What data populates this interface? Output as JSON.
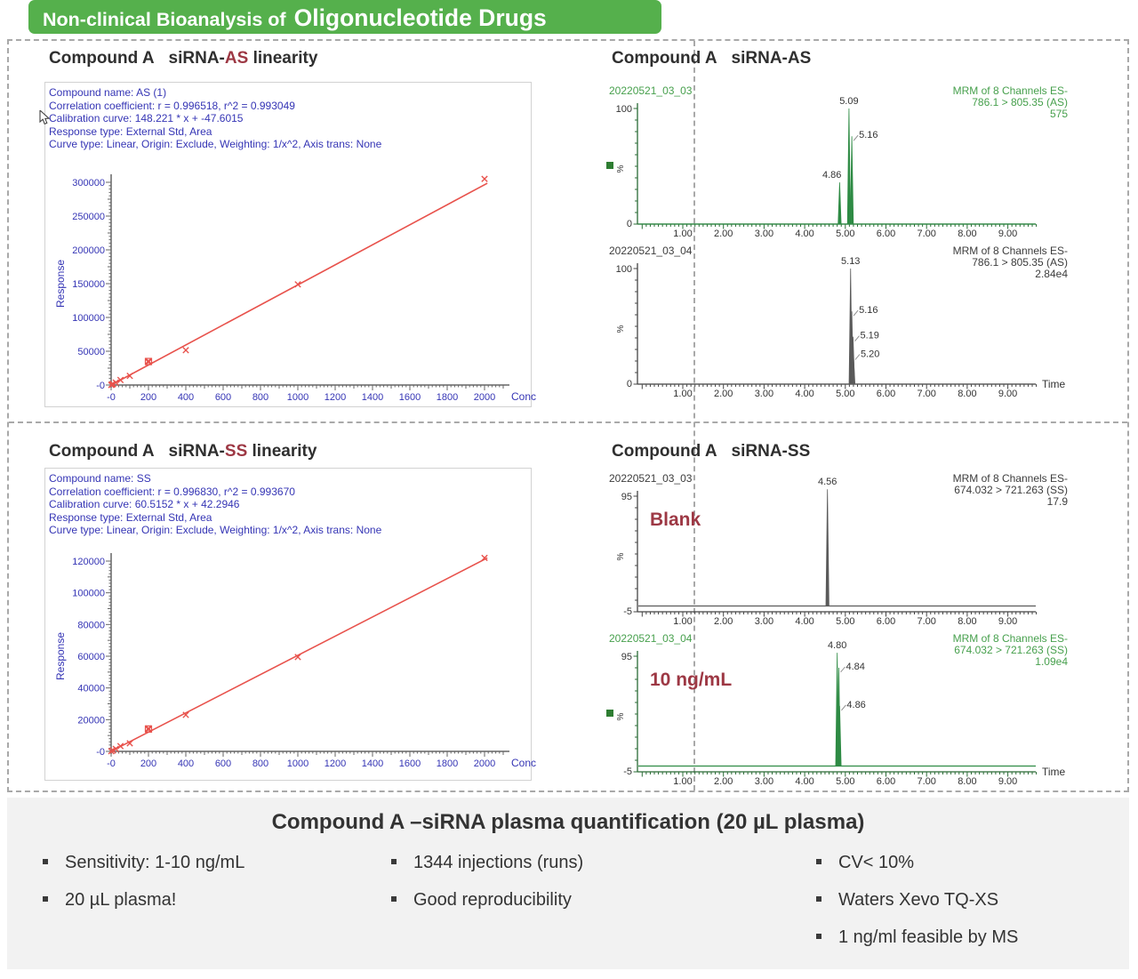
{
  "header": {
    "prefix": "Non-clinical Bioanalysis of",
    "emphasis": "Oligonucleotide Drugs"
  },
  "colors": {
    "header_bg": "#55b04c",
    "accent_red": "#9d3844",
    "stats_blue": "#3535b5",
    "fit_red": "#e8524c",
    "trace_green": "#2e8b44",
    "trace_gray": "#5a5a5a",
    "green_text": "#47a04d",
    "dark_text": "#333333",
    "summary_bg": "#f2f2f2"
  },
  "panels": {
    "top_left": {
      "title_compound": "Compound A",
      "title_mid": "siRNA-",
      "title_accent": "AS",
      "title_suffix": " linearity",
      "stats": [
        "Compound name: AS (1)",
        "Correlation coefficient: r = 0.996518, r^2 = 0.993049",
        "Calibration curve: 148.221 * x + -47.6015",
        "Response type: External Std, Area",
        "Curve type: Linear, Origin: Exclude, Weighting: 1/x^2, Axis trans: None"
      ]
    },
    "top_right": {
      "title_compound": "Compound A",
      "title_mid": "siRNA-",
      "title_accent": "AS",
      "title_suffix": ""
    },
    "bottom_left": {
      "title_compound": "Compound A",
      "title_mid": "siRNA-",
      "title_accent": "SS",
      "title_suffix": " linearity",
      "stats": [
        "Compound name: SS",
        "Correlation coefficient: r = 0.996830, r^2 = 0.993670",
        "Calibration curve: 60.5152 * x + 42.2946",
        "Response type: External Std, Area",
        "Curve type: Linear, Origin: Exclude, Weighting: 1/x^2, Axis trans: None"
      ]
    },
    "bottom_right": {
      "title_compound": "Compound A",
      "title_mid": "siRNA-",
      "title_accent": "SS",
      "title_suffix": ""
    }
  },
  "summary": {
    "title": "Compound A –siRNA plasma quantification (20 µL plasma)",
    "columns": [
      {
        "items": [
          "Sensitivity: 1-10 ng/mL",
          "20 µL plasma!"
        ]
      },
      {
        "items": [
          "1344 injections (runs)",
          "Good reproducibility"
        ]
      },
      {
        "items": [
          "CV< 10%",
          "Waters Xevo TQ-XS",
          "1 ng/ml feasible by MS"
        ]
      }
    ]
  },
  "chart_data": [
    {
      "name": "as_linearity",
      "type": "scatter",
      "title": "Compound A siRNA-AS linearity",
      "xlabel": "Conc",
      "ylabel": "Response",
      "xlim": [
        0,
        2000
      ],
      "ylim": [
        0,
        300000
      ],
      "xtick_step": 200,
      "ytick_step": 50000,
      "first_tick_label": "-0",
      "grid": false,
      "fit": {
        "slope": 148.221,
        "intercept": -47.6015
      },
      "fit_x_range": [
        0,
        2015
      ],
      "points": [
        [
          1,
          150
        ],
        [
          5,
          740
        ],
        [
          10,
          1480
        ],
        [
          25,
          3650
        ],
        [
          50,
          7400
        ],
        [
          100,
          13500
        ],
        [
          200,
          34000
        ],
        [
          200,
          35500
        ],
        [
          400,
          51500
        ],
        [
          1000,
          149000
        ],
        [
          2000,
          305000
        ]
      ],
      "boxed_point": [
        200,
        34800
      ]
    },
    {
      "name": "as_chromatograms",
      "type": "chromatogram",
      "title": "Compound A siRNA-AS",
      "xtick_labels": [
        "1.00",
        "2.00",
        "3.00",
        "4.00",
        "5.00",
        "6.00",
        "7.00",
        "8.00",
        "9.00"
      ],
      "traces": [
        {
          "run_id": "20220521_03_03",
          "header_lines": [
            "MRM of 8 Channels ES-",
            "786.1 > 805.35 (AS)",
            "575"
          ],
          "color_key": "green",
          "y_range": [
            0,
            100
          ],
          "y_top_label": "100",
          "y_bottom_label": "0",
          "y_axis_label": "%",
          "channel_marker": true,
          "annotation": null,
          "time_label": null,
          "peaks": [
            {
              "t": 4.86,
              "height": 36,
              "label": "4.86",
              "label_pos": "top-left"
            },
            {
              "t": 5.09,
              "height": 100,
              "label": "5.09",
              "label_pos": "top"
            },
            {
              "t": 5.16,
              "height": 76,
              "label": "5.16",
              "label_pos": "right"
            }
          ]
        },
        {
          "run_id": "20220521_03_04",
          "header_lines": [
            "MRM of 8 Channels ES-",
            "786.1 > 805.35 (AS)",
            "2.84e4"
          ],
          "color_key": "gray",
          "y_range": [
            0,
            100
          ],
          "y_top_label": "100",
          "y_bottom_label": "0",
          "y_axis_label": "%",
          "channel_marker": false,
          "annotation": null,
          "time_label": "Time",
          "peaks": [
            {
              "t": 5.13,
              "height": 100,
              "label": "5.13",
              "label_pos": "top"
            },
            {
              "t": 5.16,
              "height": 63,
              "label": "5.16",
              "label_pos": "right"
            },
            {
              "t": 5.19,
              "height": 41,
              "label": "5.19",
              "label_pos": "right"
            },
            {
              "t": 5.2,
              "height": 25,
              "label": "5.20",
              "label_pos": "right"
            }
          ]
        }
      ]
    },
    {
      "name": "ss_linearity",
      "type": "scatter",
      "title": "Compound A siRNA-SS linearity",
      "xlabel": "Conc",
      "ylabel": "Response",
      "xlim": [
        0,
        2000
      ],
      "ylim": [
        0,
        120000
      ],
      "xtick_step": 200,
      "ytick_step": 20000,
      "first_tick_label": "-0",
      "grid": false,
      "fit": {
        "slope": 60.5152,
        "intercept": 42.2946
      },
      "fit_x_range": [
        0,
        2015
      ],
      "points": [
        [
          1,
          100
        ],
        [
          10,
          650
        ],
        [
          25,
          1550
        ],
        [
          50,
          3300
        ],
        [
          100,
          5100
        ],
        [
          200,
          13800
        ],
        [
          200,
          14500
        ],
        [
          400,
          23000
        ],
        [
          1000,
          59500
        ],
        [
          2000,
          122000
        ]
      ],
      "boxed_point": [
        200,
        14100
      ]
    },
    {
      "name": "ss_chromatograms",
      "type": "chromatogram",
      "title": "Compound A siRNA-SS",
      "xtick_labels": [
        "1.00",
        "2.00",
        "3.00",
        "4.00",
        "5.00",
        "6.00",
        "7.00",
        "8.00",
        "9.00"
      ],
      "traces": [
        {
          "run_id": "20220521_03_03",
          "header_lines": [
            "MRM of 8 Channels ES-",
            "674.032 > 721.263 (SS)",
            "17.9"
          ],
          "color_key": "gray",
          "y_range": [
            -5,
            95
          ],
          "y_top_label": "95",
          "y_bottom_label": "-5",
          "y_axis_label": "%",
          "channel_marker": false,
          "annotation": "Blank",
          "time_label": null,
          "peaks": [
            {
              "t": 4.56,
              "height": 101,
              "label": "4.56",
              "label_pos": "top"
            }
          ]
        },
        {
          "run_id": "20220521_03_04",
          "header_lines": [
            "MRM of 8 Channels ES-",
            "674.032 > 721.263 (SS)",
            "1.09e4"
          ],
          "color_key": "green",
          "y_range": [
            -5,
            95
          ],
          "y_top_label": "95",
          "y_bottom_label": "-5",
          "y_axis_label": "%",
          "channel_marker": true,
          "annotation": "10 ng/mL",
          "time_label": "Time",
          "peaks": [
            {
              "t": 4.8,
              "height": 98,
              "label": "4.80",
              "label_pos": "top"
            },
            {
              "t": 4.84,
              "height": 85,
              "label": "4.84",
              "label_pos": "right"
            },
            {
              "t": 4.86,
              "height": 52,
              "label": "4.86",
              "label_pos": "right"
            }
          ]
        }
      ]
    }
  ]
}
